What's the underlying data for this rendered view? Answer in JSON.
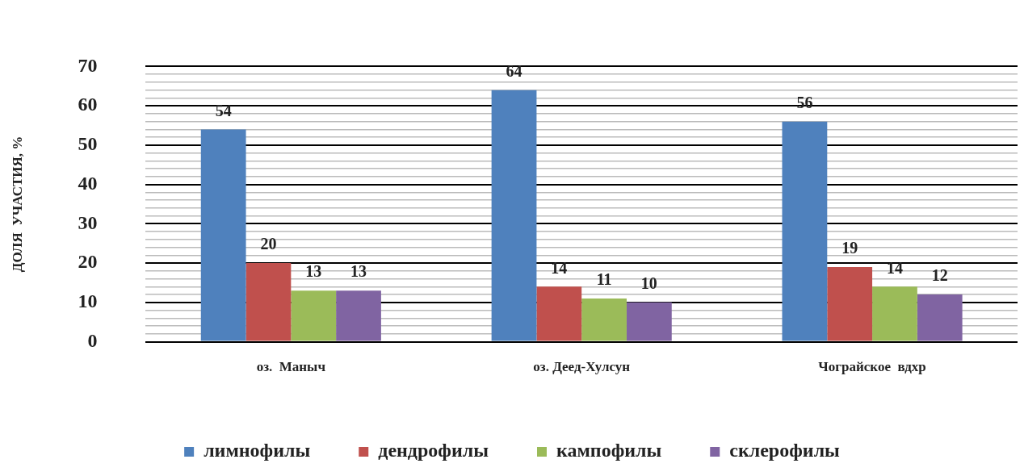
{
  "chart_data": {
    "type": "bar",
    "ylabel": "ДОЛЯ  УЧАСТИЯ, %",
    "categories": [
      "оз.  Маныч",
      "оз. Деед-Хулсун",
      "Чограйское  вдхр"
    ],
    "series": [
      {
        "name": "лимнофилы",
        "color": "#4f81bd",
        "values": [
          54,
          64,
          56
        ]
      },
      {
        "name": "дендрофилы",
        "color": "#c0504d",
        "values": [
          20,
          14,
          19
        ]
      },
      {
        "name": "кампофилы",
        "color": "#9bbb59",
        "values": [
          13,
          11,
          14
        ]
      },
      {
        "name": "склерофилы",
        "color": "#8064a2",
        "values": [
          13,
          10,
          12
        ]
      }
    ],
    "ylim": [
      0,
      70
    ],
    "yticks": [
      0,
      {
        "value": 2,
        "label": null
      },
      {
        "value": 4,
        "label": null
      },
      {
        "value": 6,
        "label": null
      },
      {
        "value": 8,
        "label": null
      },
      10,
      {
        "value": 12,
        "label": null
      },
      {
        "value": 14,
        "label": null
      },
      {
        "value": 16,
        "label": null
      },
      {
        "value": 18,
        "label": null
      },
      20,
      {
        "value": 22,
        "label": null
      },
      {
        "value": 24,
        "label": null
      },
      {
        "value": 26,
        "label": null
      },
      {
        "value": 28,
        "label": null
      },
      30,
      {
        "value": 32,
        "label": null
      },
      {
        "value": 34,
        "label": null
      },
      {
        "value": 36,
        "label": null
      },
      {
        "value": 38,
        "label": null
      },
      40,
      {
        "value": 42,
        "label": null
      },
      {
        "value": 44,
        "label": null
      },
      {
        "value": 46,
        "label": null
      },
      {
        "value": 48,
        "label": null
      },
      50,
      {
        "value": 52,
        "label": null
      },
      {
        "value": 54,
        "label": null
      },
      {
        "value": 56,
        "label": null
      },
      {
        "value": 58,
        "label": null
      },
      60,
      {
        "value": 62,
        "label": null
      },
      {
        "value": 64,
        "label": null
      },
      {
        "value": 66,
        "label": null
      },
      {
        "value": 68,
        "label": null
      },
      70
    ],
    "grid": "y",
    "legend": "bottom",
    "data_labels": true
  }
}
